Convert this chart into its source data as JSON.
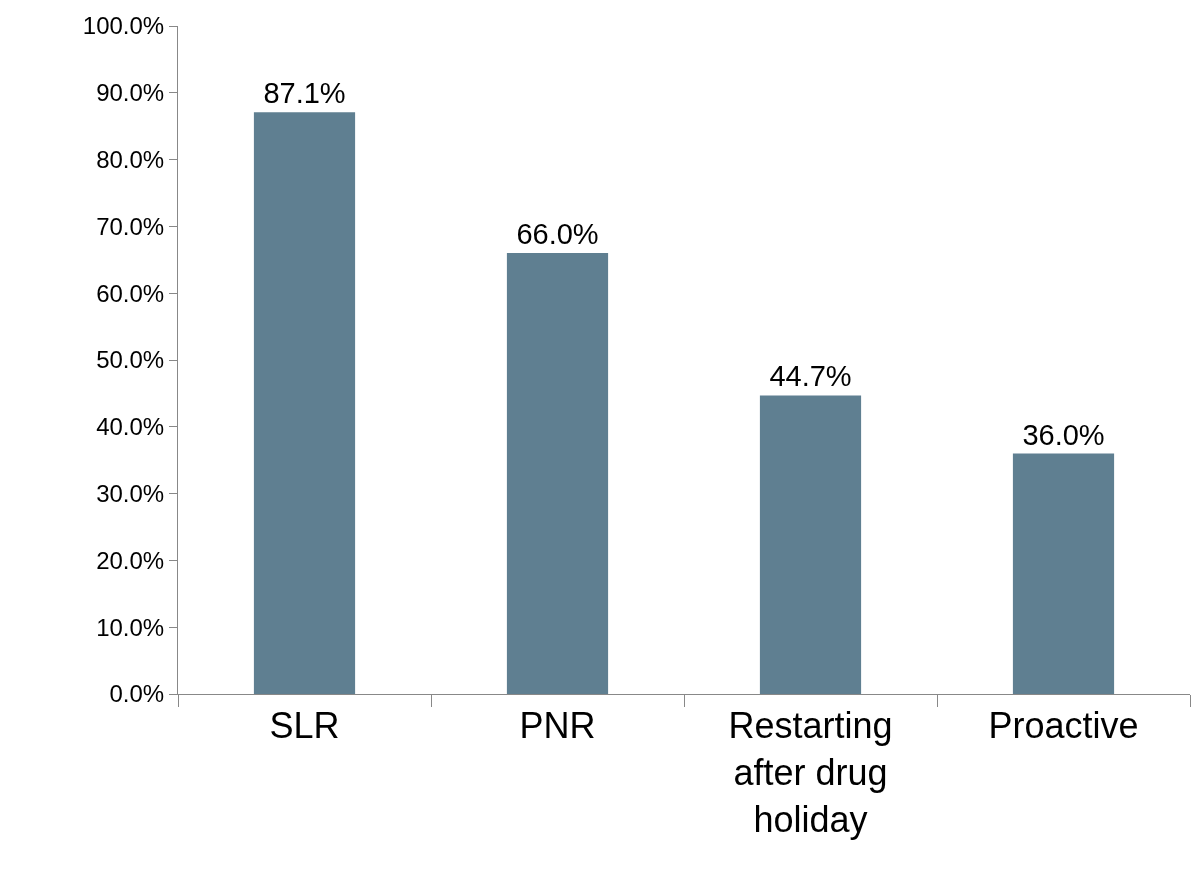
{
  "chart_data": {
    "type": "bar",
    "categories": [
      "SLR",
      "PNR",
      "Restarting after drug holiday",
      "Proactive"
    ],
    "values": [
      87.1,
      66.0,
      44.7,
      36.0
    ],
    "value_labels": [
      "87.1%",
      "66.0%",
      "44.7%",
      "36.0%"
    ],
    "color": "#5f7f91",
    "ylim": [
      0,
      100
    ],
    "yticks": [
      {
        "value": 0,
        "label": "0.0%"
      },
      {
        "value": 10,
        "label": "10.0%"
      },
      {
        "value": 20,
        "label": "20.0%"
      },
      {
        "value": 30,
        "label": "30.0%"
      },
      {
        "value": 40,
        "label": "40.0%"
      },
      {
        "value": 50,
        "label": "50.0%"
      },
      {
        "value": 60,
        "label": "60.0%"
      },
      {
        "value": 70,
        "label": "70.0%"
      },
      {
        "value": 80,
        "label": "80.0%"
      },
      {
        "value": 90,
        "label": "90.0%"
      },
      {
        "value": 100,
        "label": "100.0%"
      }
    ],
    "grid": false,
    "legend": false
  }
}
